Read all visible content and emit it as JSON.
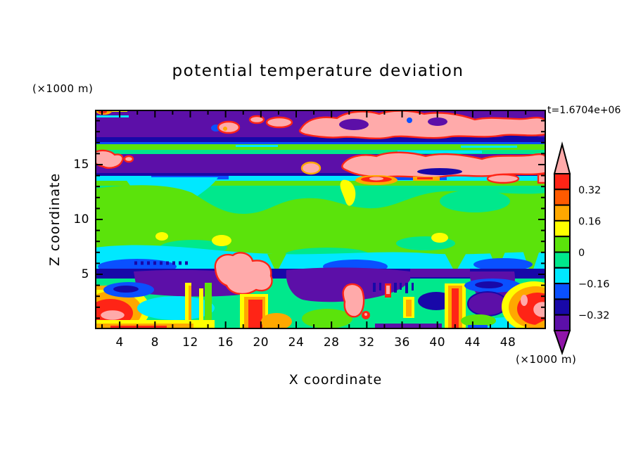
{
  "chart_data": {
    "type": "filled_contour",
    "title": "potential temperature deviation",
    "labels": {
      "time": "t=1.6704e+06",
      "x_axis_title": "X coordinate",
      "z_axis_title": "Z coordinate",
      "x_units": "(×1000 m)",
      "z_units": "(×1000 m)"
    },
    "axis_color": "#000000",
    "x_axis": {
      "range": [
        1.2,
        52.3
      ],
      "major_ticks": [
        4,
        8,
        12,
        16,
        20,
        24,
        28,
        32,
        36,
        40,
        44,
        48
      ],
      "minor_tick_step": 2
    },
    "z_axis": {
      "range": [
        0,
        20
      ],
      "major_ticks": [
        5,
        10,
        15
      ],
      "minor_tick_step": 1
    },
    "contour_interval": 0.08,
    "levels": [
      -0.4,
      -0.32,
      -0.24,
      -0.16,
      -0.08,
      0,
      0.08,
      0.16,
      0.24,
      0.32,
      0.4
    ],
    "colorbar": {
      "orientation": "vertical",
      "over_color": "pink",
      "under_color": "purple",
      "segments": [
        {
          "color": "red",
          "range": [
            0.32,
            0.4
          ]
        },
        {
          "color": "orangered",
          "range": [
            0.24,
            0.32
          ],
          "label_at_top": "0.32"
        },
        {
          "color": "orange",
          "range": [
            0.16,
            0.24
          ]
        },
        {
          "color": "yellow",
          "range": [
            0.08,
            0.16
          ],
          "label_at_top": "0.16"
        },
        {
          "color": "green",
          "range": [
            0,
            0.08
          ]
        },
        {
          "color": "springgreen",
          "range": [
            -0.08,
            0
          ],
          "label_at_top": "0"
        },
        {
          "color": "cyan",
          "range": [
            -0.16,
            -0.08
          ]
        },
        {
          "color": "blue",
          "range": [
            -0.24,
            -0.16
          ],
          "label_at_top": "−0.16"
        },
        {
          "color": "navy",
          "range": [
            -0.32,
            -0.24
          ]
        },
        {
          "color": "violet",
          "range": [
            -0.4,
            -0.32
          ],
          "label_at_top": "−0.32"
        }
      ]
    },
    "palette": {
      "pink": "#FFAAAA",
      "red": "#FF2416",
      "orangered": "#FF5A00",
      "orange": "#FFA800",
      "yellow": "#FFFF00",
      "green": "#5BE30B",
      "springgreen": "#00E88C",
      "cyan": "#00E8FF",
      "blue": "#0A50FF",
      "navy": "#1808A8",
      "violet": "#5C0FA8",
      "purple": "#8F14A8"
    },
    "features": [
      {
        "area": "x≈1–52, z≈16.5–20",
        "value": "θ' < −0.32",
        "note": "deep negative band; warm intrusions > 0.4 along z≈18–19 over x≈24–52 and isolated warm blobs near x≈13–16"
      },
      {
        "area": "x≈1–52, z≈14.3–16",
        "value": "θ' < −0.32",
        "note": "second negative band; broad warm sheet > 0.4 over x≈29–52 and small warm cells near x≈2 and x≈25"
      },
      {
        "area": "x≈1–52, z≈6.5–14",
        "value": "−0.16 < θ' < 0.08",
        "note": "weak anomalies; cool pocket near x≈5–14 z≈11–13.5; warm patch 0.08–0.16 near x≈29–30 z≈11–13.5; warm streak > 0.24 near x≈32–38 z≈13.3"
      },
      {
        "area": "x≈1–52, z≈2.7–6",
        "value": "θ' < −0.24",
        "note": "thin stable band with warm plumes > 0.4 near x≈14–21 and x≈29–31"
      },
      {
        "area": "x≈1–52, z≈0–2.7",
        "value": "−0.4 < θ' < 0.4",
        "note": "convective layer: warm plumes with cores > 0.4 near x≈2–4, 18–20, 41–42, 49–52; cool pockets < −0.32 near x≈6–18, 23–36, 44–48"
      }
    ]
  }
}
